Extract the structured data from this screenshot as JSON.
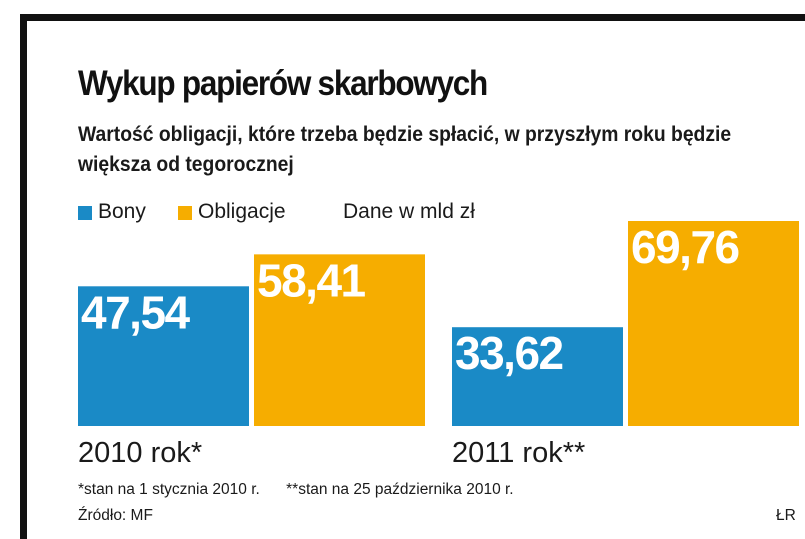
{
  "chart_data": {
    "type": "bar",
    "title": "Wykup papierów skarbowych",
    "subtitle": "Wartość obligacji, które trzeba będzie spłacić, w przyszłym roku będzie większa od tegorocznej",
    "categories": [
      "2010 rok*",
      "2011 rok**"
    ],
    "series": [
      {
        "name": "Bony",
        "color": "#1a8ac6",
        "values": [
          47.54,
          33.62
        ],
        "labels": [
          "47,54",
          "33,62"
        ]
      },
      {
        "name": "Obligacje",
        "color": "#f6ad00",
        "values": [
          58.41,
          69.76
        ],
        "labels": [
          "58,41",
          "69,76"
        ]
      }
    ],
    "units_note": "Dane w mld zł",
    "ylim": [
      0,
      70
    ],
    "grid": false,
    "legend": "top-left"
  },
  "footnotes": [
    "*stan na 1 stycznia 2010 r.",
    "**stan na 25 października 2010 r."
  ],
  "source": "Źródło: MF",
  "credit": "ŁR"
}
